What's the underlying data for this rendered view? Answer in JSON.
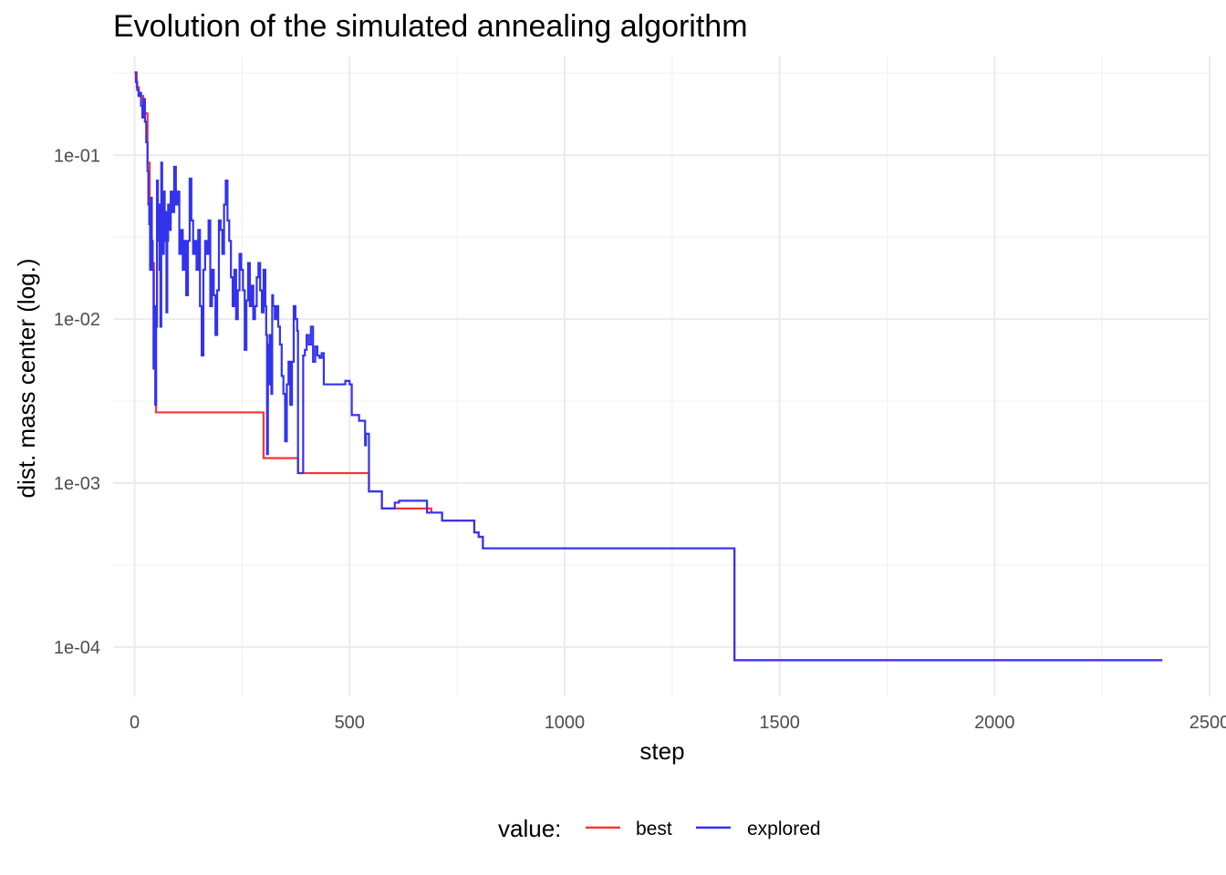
{
  "chart_data": {
    "type": "line",
    "title": "Evolution of the simulated annealing algorithm",
    "xlabel": "step",
    "ylabel": "dist. mass center (log.)",
    "y_scale": "log10",
    "xlim": [
      -50,
      2500
    ],
    "ylim": [
      5e-05,
      0.4
    ],
    "x_ticks": [
      {
        "value": 0,
        "label": "0"
      },
      {
        "value": 500,
        "label": "500"
      },
      {
        "value": 1000,
        "label": "1000"
      },
      {
        "value": 1500,
        "label": "1500"
      },
      {
        "value": 2000,
        "label": "2000"
      },
      {
        "value": 2500,
        "label": "2500"
      }
    ],
    "y_ticks": [
      {
        "value": 0.1,
        "label": "1e-01"
      },
      {
        "value": 0.01,
        "label": "1e-02"
      },
      {
        "value": 0.001,
        "label": "1e-03"
      },
      {
        "value": 0.0001,
        "label": "1e-04"
      }
    ],
    "grid": true,
    "legend": {
      "title": "value:",
      "position": "bottom"
    },
    "series": [
      {
        "name": "best",
        "color": "#ff3333",
        "step": true,
        "points": [
          [
            0,
            0.32
          ],
          [
            5,
            0.26
          ],
          [
            10,
            0.23
          ],
          [
            20,
            0.18
          ],
          [
            30,
            0.09
          ],
          [
            35,
            0.045
          ],
          [
            40,
            0.022
          ],
          [
            45,
            0.005
          ],
          [
            50,
            0.0027
          ],
          [
            300,
            0.0027
          ],
          [
            300,
            0.00142
          ],
          [
            380,
            0.00142
          ],
          [
            380,
            0.00115
          ],
          [
            545,
            0.00115
          ],
          [
            545,
            0.00089
          ],
          [
            575,
            0.00089
          ],
          [
            575,
            0.0007
          ],
          [
            690,
            0.0007
          ],
          [
            690,
            0.00066
          ],
          [
            715,
            0.00066
          ],
          [
            715,
            0.00059
          ],
          [
            790,
            0.00059
          ],
          [
            790,
            0.0005
          ],
          [
            800,
            0.0005
          ],
          [
            800,
            0.00047
          ],
          [
            810,
            0.00047
          ],
          [
            810,
            0.0004
          ],
          [
            1395,
            0.0004
          ],
          [
            1395,
            8.3e-05
          ],
          [
            2390,
            8.3e-05
          ]
        ]
      },
      {
        "name": "explored",
        "color": "#3333ee",
        "step": true,
        "points": [
          [
            0,
            0.32
          ],
          [
            3,
            0.28
          ],
          [
            6,
            0.25
          ],
          [
            9,
            0.23
          ],
          [
            12,
            0.24
          ],
          [
            15,
            0.2
          ],
          [
            18,
            0.17
          ],
          [
            21,
            0.22
          ],
          [
            24,
            0.16
          ],
          [
            27,
            0.12
          ],
          [
            30,
            0.08
          ],
          [
            32,
            0.05
          ],
          [
            34,
            0.038
          ],
          [
            36,
            0.02
          ],
          [
            38,
            0.055
          ],
          [
            40,
            0.03
          ],
          [
            42,
            0.02
          ],
          [
            44,
            0.005
          ],
          [
            46,
            0.012
          ],
          [
            48,
            0.003
          ],
          [
            50,
            0.009
          ],
          [
            52,
            0.07
          ],
          [
            54,
            0.03
          ],
          [
            56,
            0.05
          ],
          [
            58,
            0.02
          ],
          [
            60,
            0.009
          ],
          [
            62,
            0.09
          ],
          [
            64,
            0.04
          ],
          [
            66,
            0.025
          ],
          [
            68,
            0.06
          ],
          [
            70,
            0.03
          ],
          [
            72,
            0.045
          ],
          [
            74,
            0.011
          ],
          [
            76,
            0.03
          ],
          [
            78,
            0.05
          ],
          [
            80,
            0.035
          ],
          [
            84,
            0.06
          ],
          [
            88,
            0.045
          ],
          [
            92,
            0.085
          ],
          [
            96,
            0.05
          ],
          [
            100,
            0.06
          ],
          [
            104,
            0.025
          ],
          [
            108,
            0.035
          ],
          [
            112,
            0.02
          ],
          [
            116,
            0.03
          ],
          [
            120,
            0.014
          ],
          [
            124,
            0.03
          ],
          [
            128,
            0.072
          ],
          [
            132,
            0.04
          ],
          [
            136,
            0.025
          ],
          [
            140,
            0.03
          ],
          [
            144,
            0.02
          ],
          [
            148,
            0.035
          ],
          [
            152,
            0.012
          ],
          [
            156,
            0.006
          ],
          [
            160,
            0.02
          ],
          [
            164,
            0.03
          ],
          [
            168,
            0.025
          ],
          [
            172,
            0.04
          ],
          [
            176,
            0.012
          ],
          [
            180,
            0.02
          ],
          [
            184,
            0.014
          ],
          [
            188,
            0.008
          ],
          [
            192,
            0.015
          ],
          [
            196,
            0.04
          ],
          [
            200,
            0.035
          ],
          [
            204,
            0.025
          ],
          [
            208,
            0.05
          ],
          [
            212,
            0.07
          ],
          [
            216,
            0.04
          ],
          [
            220,
            0.03
          ],
          [
            224,
            0.018
          ],
          [
            228,
            0.012
          ],
          [
            232,
            0.02
          ],
          [
            236,
            0.01
          ],
          [
            240,
            0.015
          ],
          [
            244,
            0.025
          ],
          [
            248,
            0.02
          ],
          [
            252,
            0.015
          ],
          [
            256,
            0.0065
          ],
          [
            260,
            0.013
          ],
          [
            264,
            0.022
          ],
          [
            268,
            0.012
          ],
          [
            272,
            0.016
          ],
          [
            276,
            0.01
          ],
          [
            280,
            0.012
          ],
          [
            284,
            0.018
          ],
          [
            288,
            0.022
          ],
          [
            292,
            0.015
          ],
          [
            296,
            0.011
          ],
          [
            300,
            0.02
          ],
          [
            304,
            0.012
          ],
          [
            306,
            0.008
          ],
          [
            308,
            0.0015
          ],
          [
            310,
            0.007
          ],
          [
            312,
            0.004
          ],
          [
            314,
            0.008
          ],
          [
            316,
            0.005
          ],
          [
            318,
            0.0035
          ],
          [
            320,
            0.014
          ],
          [
            322,
            0.012
          ],
          [
            326,
            0.01
          ],
          [
            330,
            0.012
          ],
          [
            334,
            0.009
          ],
          [
            338,
            0.007
          ],
          [
            342,
            0.0045
          ],
          [
            346,
            0.0035
          ],
          [
            350,
            0.0018
          ],
          [
            354,
            0.004
          ],
          [
            358,
            0.0055
          ],
          [
            362,
            0.003
          ],
          [
            366,
            0.0055
          ],
          [
            370,
            0.012
          ],
          [
            374,
            0.01
          ],
          [
            378,
            0.0085
          ],
          [
            380,
            0.00115
          ],
          [
            390,
            0.00115
          ],
          [
            392,
            0.006
          ],
          [
            396,
            0.0065
          ],
          [
            400,
            0.008
          ],
          [
            405,
            0.007
          ],
          [
            410,
            0.009
          ],
          [
            415,
            0.0055
          ],
          [
            420,
            0.0068
          ],
          [
            425,
            0.006
          ],
          [
            430,
            0.0058
          ],
          [
            435,
            0.0062
          ],
          [
            440,
            0.004
          ],
          [
            480,
            0.004
          ],
          [
            490,
            0.0042
          ],
          [
            500,
            0.004
          ],
          [
            505,
            0.0026
          ],
          [
            520,
            0.0026
          ],
          [
            522,
            0.0024
          ],
          [
            536,
            0.0024
          ],
          [
            536,
            0.0017
          ],
          [
            538,
            0.002
          ],
          [
            545,
            0.002
          ],
          [
            545,
            0.00089
          ],
          [
            575,
            0.00089
          ],
          [
            575,
            0.0007
          ],
          [
            605,
            0.0007
          ],
          [
            605,
            0.00076
          ],
          [
            615,
            0.00076
          ],
          [
            615,
            0.00078
          ],
          [
            680,
            0.00078
          ],
          [
            680,
            0.00066
          ],
          [
            715,
            0.00066
          ],
          [
            715,
            0.00059
          ],
          [
            790,
            0.00059
          ],
          [
            790,
            0.0005
          ],
          [
            800,
            0.0005
          ],
          [
            800,
            0.00047
          ],
          [
            810,
            0.00047
          ],
          [
            810,
            0.0004
          ],
          [
            1395,
            0.0004
          ],
          [
            1395,
            8.3e-05
          ],
          [
            2390,
            8.3e-05
          ]
        ]
      }
    ]
  }
}
